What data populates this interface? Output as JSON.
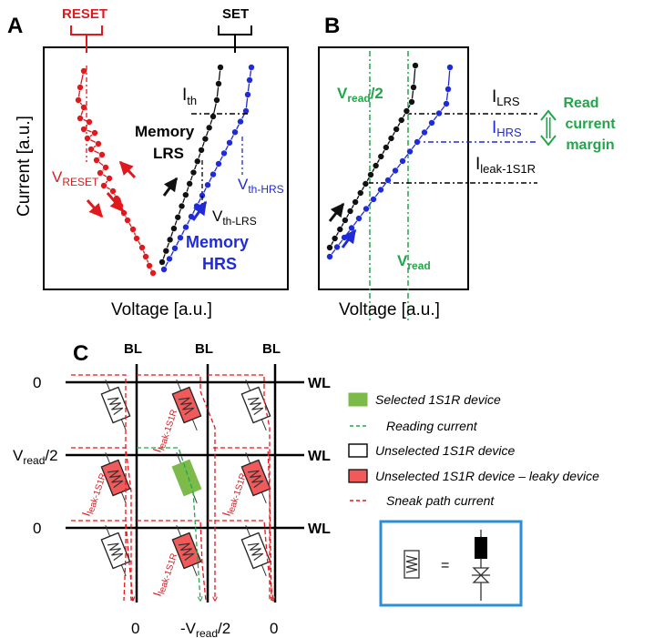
{
  "panel_a": {
    "letter": "A",
    "reset_label": "RESET",
    "set_label": "SET",
    "ith_main": "I",
    "ith_sub": "th",
    "memory_lrs_1": "Memory",
    "memory_lrs_2": "LRS",
    "vreset_main": "V",
    "vreset_sub": "RESET",
    "vth_hrs_main": "V",
    "vth_hrs_sub": "th-HRS",
    "vth_lrs_main": "V",
    "vth_lrs_sub": "th-LRS",
    "memory_hrs_1": "Memory",
    "memory_hrs_2": "HRS",
    "ylabel": "Current [a.u.]",
    "xlabel": "Voltage [a.u.]"
  },
  "panel_b": {
    "letter": "B",
    "vread2_main": "V",
    "vread2_sub": "read",
    "vread2_tail": "/2",
    "vread_main": "V",
    "vread_sub": "read",
    "ilrs_main": "I",
    "ilrs_sub": "LRS",
    "ihrs_main": "I",
    "ihrs_sub": "HRS",
    "ileak_main": "I",
    "ileak_sub": "leak-1S1R",
    "margin_1": "Read",
    "margin_2": "current",
    "margin_3": "margin",
    "xlabel": "Voltage [a.u.]"
  },
  "panel_c": {
    "letter": "C",
    "bl": "BL",
    "wl": "WL",
    "row_voltages": [
      "0",
      "V",
      "0"
    ],
    "row_vread_sub": "read",
    "row_vread_tail": "/2",
    "col_voltages": [
      "0",
      "-V",
      "0"
    ],
    "col_vread_sub": "read",
    "col_vread_tail": "/2",
    "leak_main": "I",
    "leak_sub": "leak-1S1R",
    "legend": [
      "Selected 1S1R device",
      "Reading current",
      "Unselected 1S1R device",
      "Unselected 1S1R device – leaky device",
      "Sneak path current"
    ],
    "equals": "="
  },
  "colors": {
    "red": "#e0191f",
    "blue": "#1f2bd6",
    "green": "#22a64a",
    "leaky_fill": "#f05a5a",
    "selected_fill": "#7cbb4a",
    "box_border": "#2a8fd6"
  }
}
